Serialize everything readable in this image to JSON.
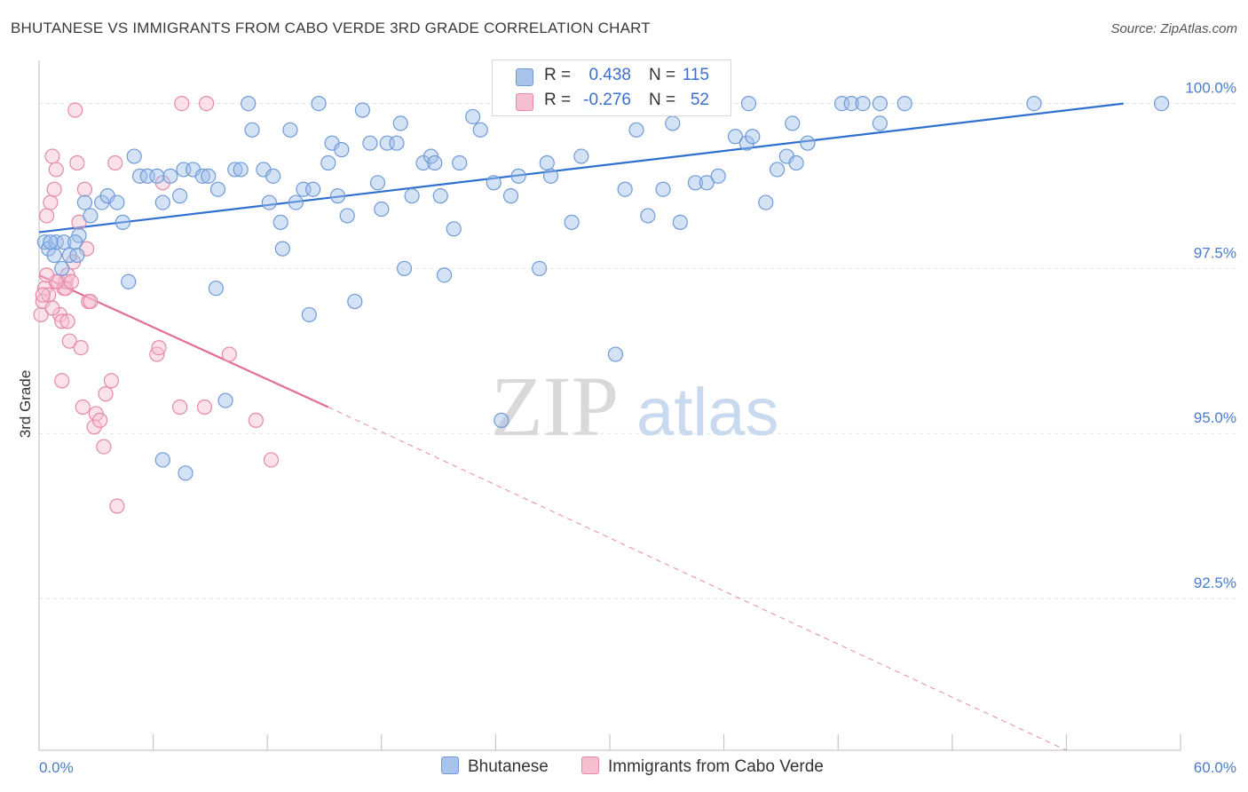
{
  "header": {
    "title": "BHUTANESE VS IMMIGRANTS FROM CABO VERDE 3RD GRADE CORRELATION CHART",
    "source": "Source: ZipAtlas.com"
  },
  "watermark": {
    "zip": "ZIP",
    "atlas": "atlas"
  },
  "legend": {
    "rows": [
      {
        "r_label": "R =",
        "r_value": "0.438",
        "n_label": "N =",
        "n_value": "115",
        "color": "#a9c4ea",
        "border": "#6f9ad6"
      },
      {
        "r_label": "R =",
        "r_value": "-0.276",
        "n_label": "N =",
        "n_value": "52",
        "color": "#f6bfd0",
        "border": "#e58aa6"
      }
    ]
  },
  "bottom_legend": {
    "series1": "Bhutanese",
    "series2": "Immigrants from Cabo Verde"
  },
  "colors": {
    "blue": "#6f9ad6",
    "blue_fill": "rgba(160,190,235,0.45)",
    "blue_line": "#2e6fcf",
    "pink": "#e58aa6",
    "pink_fill": "rgba(246,190,208,0.45)",
    "pink_line": "#e36d96",
    "tick_text": "#4a7cc9",
    "grid": "#e3e3e3"
  },
  "chart_data": {
    "type": "scatter",
    "title": "BHUTANESE VS IMMIGRANTS FROM CABO VERDE 3RD GRADE CORRELATION CHART",
    "xlabel": "",
    "ylabel": "3rd Grade",
    "xlim": [
      0,
      60
    ],
    "ylim": [
      90.2,
      100.6
    ],
    "x_tick_labels": [
      "0.0%",
      "60.0%"
    ],
    "y_ticks": [
      92.5,
      95.0,
      97.5,
      100.0
    ],
    "y_tick_labels": [
      "92.5%",
      "95.0%",
      "97.5%",
      "100.0%"
    ],
    "grid": true,
    "legend_position": "top-center",
    "series": [
      {
        "name": "Bhutanese",
        "R": 0.438,
        "N": 115,
        "trend": {
          "x": [
            0,
            57
          ],
          "y": [
            98.05,
            100.0
          ]
        },
        "points": [
          [
            0.3,
            97.9
          ],
          [
            0.5,
            97.8
          ],
          [
            0.8,
            97.7
          ],
          [
            0.9,
            97.9
          ],
          [
            1.2,
            97.5
          ],
          [
            1.6,
            97.7
          ],
          [
            2.1,
            98.0
          ],
          [
            2.4,
            98.5
          ],
          [
            2.7,
            98.3
          ],
          [
            3.3,
            98.5
          ],
          [
            3.6,
            98.6
          ],
          [
            4.1,
            98.5
          ],
          [
            4.4,
            98.2
          ],
          [
            4.7,
            97.3
          ],
          [
            5.0,
            99.2
          ],
          [
            5.3,
            98.9
          ],
          [
            5.7,
            98.9
          ],
          [
            6.2,
            98.9
          ],
          [
            6.5,
            98.5
          ],
          [
            6.9,
            98.9
          ],
          [
            7.4,
            98.6
          ],
          [
            7.6,
            99.0
          ],
          [
            8.1,
            99.0
          ],
          [
            8.6,
            98.9
          ],
          [
            8.9,
            98.9
          ],
          [
            9.3,
            97.2
          ],
          [
            9.4,
            98.7
          ],
          [
            9.8,
            95.5
          ],
          [
            10.3,
            99.0
          ],
          [
            10.6,
            99.0
          ],
          [
            11.0,
            100.0
          ],
          [
            11.2,
            99.6
          ],
          [
            11.8,
            99.0
          ],
          [
            12.1,
            98.5
          ],
          [
            12.3,
            98.9
          ],
          [
            12.7,
            98.2
          ],
          [
            12.8,
            97.8
          ],
          [
            13.2,
            99.6
          ],
          [
            13.5,
            98.5
          ],
          [
            13.9,
            98.7
          ],
          [
            14.2,
            96.8
          ],
          [
            14.4,
            98.7
          ],
          [
            14.7,
            100.0
          ],
          [
            15.2,
            99.1
          ],
          [
            15.4,
            99.4
          ],
          [
            15.7,
            98.6
          ],
          [
            15.9,
            99.3
          ],
          [
            16.2,
            98.3
          ],
          [
            16.6,
            97.0
          ],
          [
            17.0,
            99.9
          ],
          [
            17.4,
            99.4
          ],
          [
            17.8,
            98.8
          ],
          [
            18.0,
            98.4
          ],
          [
            18.3,
            99.4
          ],
          [
            18.8,
            99.4
          ],
          [
            19.0,
            99.7
          ],
          [
            19.2,
            97.5
          ],
          [
            19.6,
            98.6
          ],
          [
            20.2,
            99.1
          ],
          [
            20.6,
            99.2
          ],
          [
            20.8,
            99.1
          ],
          [
            21.1,
            98.6
          ],
          [
            21.3,
            97.4
          ],
          [
            21.8,
            98.1
          ],
          [
            22.1,
            99.1
          ],
          [
            22.8,
            99.8
          ],
          [
            23.2,
            99.6
          ],
          [
            23.9,
            98.8
          ],
          [
            24.3,
            95.2
          ],
          [
            24.8,
            98.6
          ],
          [
            25.2,
            98.9
          ],
          [
            26.3,
            97.5
          ],
          [
            26.7,
            99.1
          ],
          [
            26.9,
            98.9
          ],
          [
            28.0,
            98.2
          ],
          [
            28.5,
            99.2
          ],
          [
            28.9,
            100.0
          ],
          [
            30.3,
            96.2
          ],
          [
            30.8,
            98.7
          ],
          [
            31.4,
            99.6
          ],
          [
            32.0,
            98.3
          ],
          [
            32.8,
            98.7
          ],
          [
            33.1,
            100.0
          ],
          [
            33.3,
            99.7
          ],
          [
            33.7,
            98.2
          ],
          [
            34.5,
            98.8
          ],
          [
            35.1,
            98.8
          ],
          [
            35.7,
            98.9
          ],
          [
            36.6,
            99.5
          ],
          [
            37.2,
            99.4
          ],
          [
            37.5,
            99.5
          ],
          [
            38.2,
            98.5
          ],
          [
            38.8,
            99.0
          ],
          [
            39.3,
            99.2
          ],
          [
            39.6,
            99.7
          ],
          [
            39.8,
            99.1
          ],
          [
            40.4,
            99.4
          ],
          [
            42.2,
            100.0
          ],
          [
            42.7,
            100.0
          ],
          [
            43.3,
            100.0
          ],
          [
            44.2,
            100.0
          ],
          [
            44.2,
            99.7
          ],
          [
            45.5,
            100.0
          ],
          [
            52.3,
            100.0
          ],
          [
            59.0,
            100.0
          ],
          [
            6.5,
            94.6
          ],
          [
            7.7,
            94.4
          ],
          [
            1.3,
            97.9
          ],
          [
            2.0,
            97.7
          ],
          [
            0.6,
            97.9
          ],
          [
            1.9,
            97.9
          ],
          [
            37.3,
            100.0
          ]
        ]
      },
      {
        "name": "Immigrants from Cabo Verde",
        "R": -0.276,
        "N": 52,
        "trend": {
          "x": [
            0,
            15.2
          ],
          "y": [
            97.4,
            95.4
          ]
        },
        "trend_extension": {
          "x": [
            15.2,
            54
          ],
          "y": [
            95.4,
            90.2
          ]
        },
        "points": [
          [
            0.1,
            96.8
          ],
          [
            0.2,
            97.0
          ],
          [
            0.3,
            97.2
          ],
          [
            0.4,
            98.3
          ],
          [
            0.5,
            97.1
          ],
          [
            0.6,
            98.5
          ],
          [
            0.7,
            99.2
          ],
          [
            0.8,
            98.7
          ],
          [
            0.9,
            99.0
          ],
          [
            1.0,
            97.3
          ],
          [
            1.1,
            96.8
          ],
          [
            1.2,
            96.7
          ],
          [
            1.3,
            97.2
          ],
          [
            1.4,
            97.3
          ],
          [
            1.5,
            97.4
          ],
          [
            1.6,
            96.4
          ],
          [
            1.8,
            97.6
          ],
          [
            1.9,
            99.9
          ],
          [
            2.0,
            99.1
          ],
          [
            2.1,
            98.2
          ],
          [
            2.2,
            96.3
          ],
          [
            2.3,
            95.4
          ],
          [
            2.4,
            98.7
          ],
          [
            2.5,
            97.8
          ],
          [
            2.6,
            97.0
          ],
          [
            2.7,
            97.0
          ],
          [
            2.9,
            95.1
          ],
          [
            3.0,
            95.3
          ],
          [
            3.2,
            95.2
          ],
          [
            3.4,
            94.8
          ],
          [
            3.5,
            95.6
          ],
          [
            3.8,
            95.8
          ],
          [
            4.0,
            99.1
          ],
          [
            4.1,
            93.9
          ],
          [
            6.2,
            96.2
          ],
          [
            6.3,
            96.3
          ],
          [
            6.5,
            98.8
          ],
          [
            7.4,
            95.4
          ],
          [
            7.5,
            100.0
          ],
          [
            8.7,
            95.4
          ],
          [
            8.8,
            100.0
          ],
          [
            10.0,
            96.2
          ],
          [
            11.4,
            95.2
          ],
          [
            12.2,
            94.6
          ],
          [
            1.2,
            95.8
          ],
          [
            0.7,
            96.9
          ],
          [
            1.4,
            97.2
          ],
          [
            1.5,
            96.7
          ],
          [
            0.9,
            97.3
          ],
          [
            0.4,
            97.4
          ],
          [
            0.2,
            97.1
          ],
          [
            1.7,
            97.3
          ]
        ]
      }
    ]
  }
}
